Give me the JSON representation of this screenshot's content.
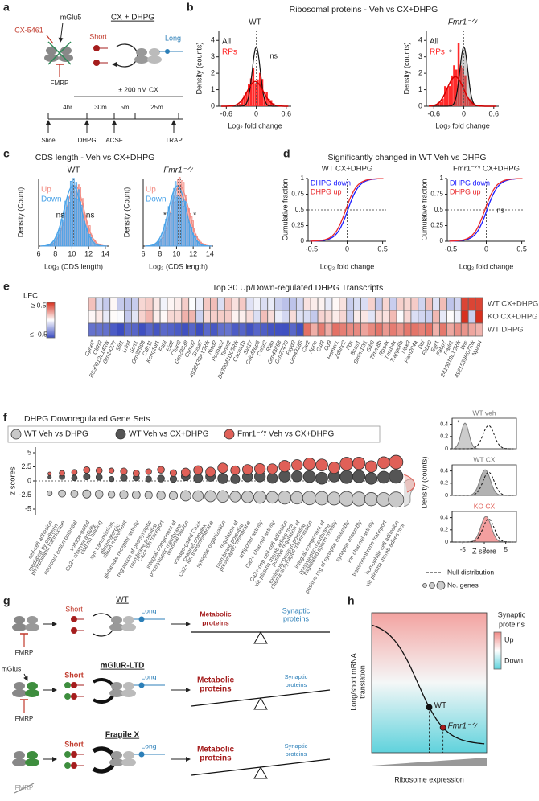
{
  "labels": [
    "a",
    "b",
    "c",
    "d",
    "e",
    "f",
    "g",
    "h"
  ],
  "a": {
    "mglu": "mGlu5",
    "drug": "CX-5461",
    "treatment": "CX + DHPG",
    "short": "Short",
    "long": "Long",
    "fmrp": "FMRP",
    "dose": "± 200 nM CX",
    "durations": [
      "4hr",
      "30m",
      "5m",
      "25m"
    ],
    "events": [
      "Slice",
      "DHPG",
      "ACSF",
      "TRAP"
    ]
  },
  "b": {
    "title": "Ribosomal proteins - Veh vs CX+DHPG",
    "genotypes": [
      "WT",
      "Fmr1⁻ᐟʸ"
    ],
    "legend": [
      "All",
      "RPs"
    ],
    "notes": [
      "ns",
      "*"
    ],
    "ylabel": "Density (counts)",
    "xlabel": "Log₂ fold change",
    "xlim": [
      -0.75,
      0.7
    ],
    "ylim": [
      0,
      4.6
    ],
    "yticks": [
      0,
      1,
      2,
      3,
      4
    ],
    "xticks": [
      -0.6,
      0,
      0.6
    ]
  },
  "c": {
    "title": "CDS length - Veh vs CX+DHPG",
    "genotypes": [
      "WT",
      "Fmr1⁻ᐟʸ"
    ],
    "legend": [
      "Up",
      "Down"
    ],
    "notes": [
      "ns",
      "*"
    ],
    "ylabel": "Density (Count)",
    "xlabel": "Log₂ (CDS length)",
    "xlim": [
      6,
      14.4
    ],
    "xticks": [
      6,
      8,
      10,
      12,
      14
    ]
  },
  "d": {
    "title": "Significantly changed in WT Veh vs DHPG",
    "subtitles": [
      "WT CX+DHPG",
      "Fmr1⁻ᐟʸ CX+DHPG"
    ],
    "legend": [
      "DHPG down",
      "DHPG up"
    ],
    "note": "ns",
    "ylabel": "Cumulative fraction",
    "xlabel": "Log₂ fold change",
    "xlim": [
      -0.55,
      0.55
    ],
    "ylim": [
      0,
      1
    ],
    "yticks": [
      0,
      0.25,
      0.5,
      0.75,
      1
    ],
    "xticks": [
      -0.5,
      0,
      0.5
    ]
  },
  "e": {
    "title": "Top 30 Up/Down-regulated DHPG Transcripts",
    "legend_title": "LFC",
    "legend_ticks": [
      "≥ 0.5",
      "≤ -0.5"
    ],
    "rows": [
      "WT CX+DHPG",
      "KO CX+DHPG",
      "WT DHPG"
    ],
    "genes": [
      "Cpne7",
      "Cbln2",
      "B830012L14Rik",
      "Gm14277",
      "Slit1",
      "Lrfn4",
      "Scrt1",
      "Gm32993",
      "Cdh11",
      "Kcnq1ot1",
      "Fat3",
      "Eid2",
      "Clstn3",
      "Gm28638",
      "Csmd2",
      "Shisa7",
      "4932438A13Rik",
      "Nwd2",
      "Pcdhac2",
      "Tenm2",
      "D430041D05Rik",
      "Cacna1b",
      "Syt17",
      "Cdc42ep3",
      "Celsr2",
      "Rian",
      "Gm43658",
      "Gm27470",
      "Fxyd2",
      "Gm43185",
      "Car2",
      "Apoe",
      "Cst3",
      "Cd9",
      "Homer1",
      "Zdhhc2",
      "Fos",
      "Bcas1",
      "Smim10l1",
      "Gjb6",
      "Timm8b",
      "Rps4x",
      "Tmsb4x",
      "Trappc6b",
      "Ntrk2",
      "Fam204a",
      "Dbi",
      "Fkbp9",
      "Egr1",
      "Fabp7",
      "Parlr1",
      "2410018L13Rik",
      "Wls",
      "4921539H07Rik",
      "Npas4"
    ]
  },
  "f": {
    "title": "DHPG Downregulated Gene Sets",
    "legend": [
      "WT Veh vs DHPG",
      "WT Veh vs CX+DHPG",
      "Fmr1⁻ᐟʸ Veh vs CX+DHPG"
    ],
    "ylabel": "z scores",
    "ylim": [
      -6,
      6
    ],
    "yticks": [
      5,
      2.5,
      0,
      -2.5,
      -5
    ],
    "sets": [
      [
        "cell-cell adhesion",
        "mediated by cadherin"
      ],
      [
        "phospholipid translocase"
      ],
      [
        "neuronal action potential"
      ],
      [
        "voltage-gated",
        "Ca2+ channel activity"
      ],
      [
        "clathrin binding"
      ],
      [
        "syn transmission,",
        "glutamatergic"
      ],
      [
        "cilium movement"
      ],
      [
        "glutamate receptor activity"
      ],
      [
        "regulation of postsynaptic",
        "membrane potential"
      ],
      [
        "Ca2+ ion transport"
      ],
      [
        "integral component of",
        "postsynaptic membrane"
      ],
      [
        "terminal bouton"
      ],
      [
        "voltage-gated Ca2+",
        "channel complex"
      ],
      [
        "Ca2+ ion transmembrane"
      ],
      [
        "synapse organization"
      ],
      [
        "regulation of",
        "membrane potential"
      ],
      [
        "presynaptic membrane"
      ],
      [
        "antiporter activity"
      ],
      [
        "Ca2+ channel activity"
      ],
      [
        "Ca2+-dep cell-cell adhesion",
        "via plasma memb adhes mol"
      ],
      [
        "positive regulation of",
        "excitatory postsyn potential"
      ],
      [
        "chemical synaptic transmission"
      ],
      [
        "integral component of",
        "presynaptic membrane"
      ],
      [
        "flagellated sperm motility"
      ],
      [
        "positive reg of synapse assembly"
      ],
      [
        "synapse assembly"
      ],
      [
        "ion channel activity"
      ],
      [
        "transmembrane transport"
      ],
      [
        "homophilic cell adhesion",
        "via plasma memb adhes mol"
      ]
    ],
    "inset": {
      "panels": [
        "WT veh",
        "WT CX",
        "KO CX"
      ],
      "note": "*",
      "ylabel": "Density (counts)",
      "xlabel": "Z score",
      "xlim": [
        -7.5,
        7.5
      ],
      "ylim": [
        0,
        0.5
      ],
      "xticks": [
        -5,
        0,
        5
      ],
      "yticks": [
        0,
        0.2,
        0.4
      ]
    },
    "key": [
      "Null distribution",
      "No. genes"
    ]
  },
  "g": {
    "titles": [
      "WT",
      "mGluR-LTD",
      "Fragile X"
    ],
    "short": "Short",
    "long": "Long",
    "fmrp": "FMRP",
    "mglu": "mGlus",
    "metabolic": [
      "Metabolic",
      "proteins"
    ],
    "synaptic": [
      "Synaptic",
      "proteins"
    ]
  },
  "h": {
    "ylabel": [
      "Long/short mRNA",
      "translation"
    ],
    "xlabel": "Ribosome expression",
    "points": [
      "WT",
      "Fmr1⁻ᐟʸ"
    ],
    "legend_title": [
      "Synaptic",
      "proteins"
    ],
    "legend": [
      "Up",
      "Down"
    ]
  }
}
